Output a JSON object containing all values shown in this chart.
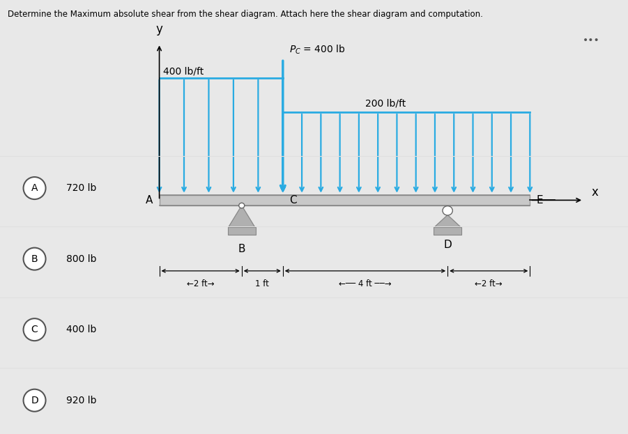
{
  "title": "Determine the Maximum absolute shear from the shear diagram. Attach here the shear diagram and computation.",
  "bg_outer": "#e8e8e8",
  "bg_left_panel": "#d8d8d8",
  "bg_main_panel": "#ffffff",
  "beam_color": "#c8c8c8",
  "beam_edge_color": "#999999",
  "arrow_color": "#29abe2",
  "support_color": "#b0b0b0",
  "support_edge_color": "#888888",
  "options": [
    {
      "label": "A",
      "text": "720 lb"
    },
    {
      "label": "B",
      "text": "800 lb"
    },
    {
      "label": "C",
      "text": "400 lb"
    },
    {
      "label": "D",
      "text": "920 lb"
    }
  ],
  "dist_left_label": "400 lb/ft",
  "dist_right_label": "200 lb/ft",
  "point_load_label": "$P_C$ = 400 lb"
}
